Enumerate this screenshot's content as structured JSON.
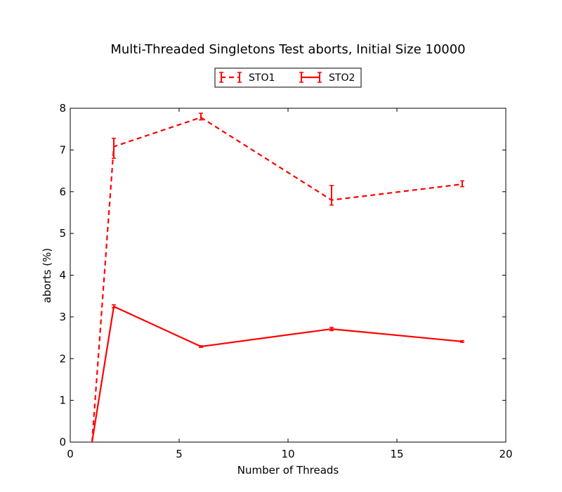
{
  "chart_data": {
    "type": "line",
    "title": "Multi-Threaded Singletons Test aborts, Initial Size 10000",
    "xlabel": "Number of Threads",
    "ylabel": "aborts (%)",
    "xlim": [
      0,
      20
    ],
    "ylim": [
      0,
      8
    ],
    "xticks": [
      "0",
      "5",
      "10",
      "15",
      "20"
    ],
    "yticks": [
      "0",
      "1",
      "2",
      "3",
      "4",
      "5",
      "6",
      "7",
      "8"
    ],
    "grid": false,
    "legend_position": "top-center",
    "series": [
      {
        "name": "STO1",
        "style": "dashed",
        "color": "#ff0000",
        "x": [
          1,
          2,
          6,
          12,
          18
        ],
        "y": [
          0.0,
          7.08,
          7.78,
          5.8,
          6.18
        ],
        "err_low": [
          0.0,
          6.8,
          7.72,
          5.68,
          6.12
        ],
        "err_high": [
          0.0,
          7.28,
          7.88,
          6.15,
          6.26
        ]
      },
      {
        "name": "STO2",
        "style": "solid",
        "color": "#ff0000",
        "x": [
          1,
          2,
          6,
          12,
          18
        ],
        "y": [
          0.0,
          3.25,
          2.29,
          2.71,
          2.41
        ],
        "err_low": [
          0.0,
          3.22,
          2.27,
          2.67,
          2.39
        ],
        "err_high": [
          0.0,
          3.29,
          2.31,
          2.75,
          2.43
        ]
      }
    ]
  }
}
